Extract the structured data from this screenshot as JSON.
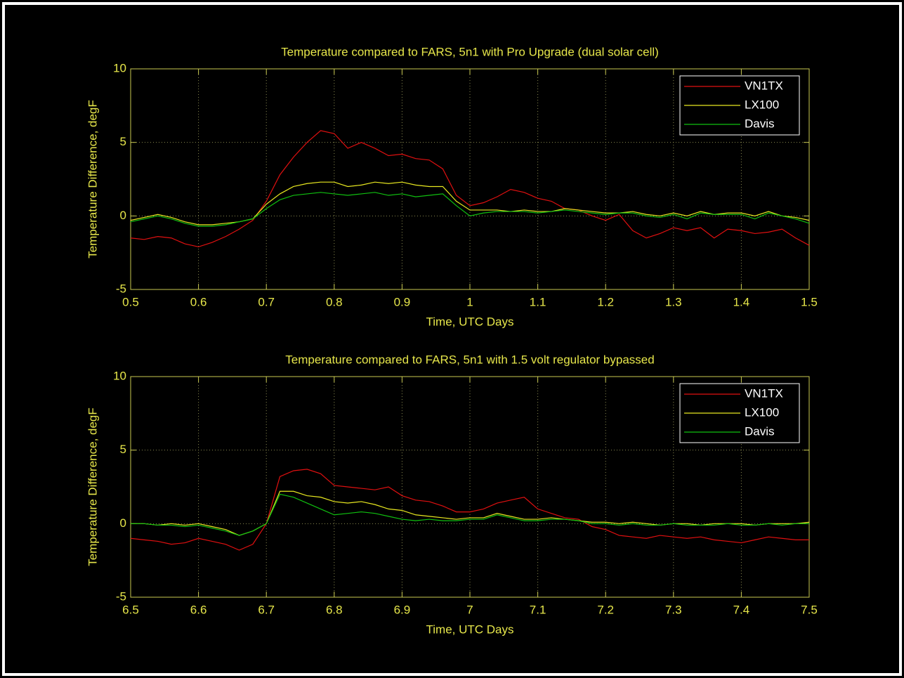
{
  "chart_data": [
    {
      "type": "line",
      "title": "Temperature compared to FARS, 5n1 with Pro Upgrade (dual solar cell)",
      "xlabel": "Time, UTC Days",
      "ylabel": "Temperature Difference, degF",
      "x": [
        0.5,
        0.52,
        0.54,
        0.56,
        0.58,
        0.6,
        0.62,
        0.64,
        0.66,
        0.68,
        0.7,
        0.72,
        0.74,
        0.76,
        0.78,
        0.8,
        0.82,
        0.84,
        0.86,
        0.88,
        0.9,
        0.92,
        0.94,
        0.96,
        0.98,
        1.0,
        1.02,
        1.04,
        1.06,
        1.08,
        1.1,
        1.12,
        1.14,
        1.16,
        1.18,
        1.2,
        1.22,
        1.24,
        1.26,
        1.28,
        1.3,
        1.32,
        1.34,
        1.36,
        1.38,
        1.4,
        1.42,
        1.44,
        1.46,
        1.48,
        1.5
      ],
      "series": [
        {
          "name": "VN1TX",
          "color": "#e01010",
          "values": [
            -1.5,
            -1.6,
            -1.4,
            -1.5,
            -1.9,
            -2.1,
            -1.8,
            -1.4,
            -0.9,
            -0.3,
            1.0,
            2.8,
            4.0,
            5.0,
            5.8,
            5.6,
            4.6,
            5.0,
            4.6,
            4.1,
            4.2,
            3.9,
            3.8,
            3.2,
            1.4,
            0.7,
            0.9,
            1.3,
            1.8,
            1.6,
            1.2,
            1.0,
            0.5,
            0.4,
            0.0,
            -0.3,
            0.1,
            -1.0,
            -1.5,
            -1.2,
            -0.8,
            -1.0,
            -0.8,
            -1.5,
            -0.9,
            -1.0,
            -1.2,
            -1.1,
            -0.9,
            -1.5,
            -2.0
          ]
        },
        {
          "name": "LX100",
          "color": "#e8e820",
          "values": [
            -0.3,
            -0.1,
            0.1,
            -0.1,
            -0.4,
            -0.6,
            -0.6,
            -0.5,
            -0.4,
            -0.2,
            0.8,
            1.5,
            2.0,
            2.2,
            2.3,
            2.3,
            2.0,
            2.1,
            2.3,
            2.2,
            2.3,
            2.1,
            2.0,
            2.0,
            1.0,
            0.4,
            0.4,
            0.4,
            0.3,
            0.4,
            0.3,
            0.3,
            0.5,
            0.4,
            0.3,
            0.2,
            0.2,
            0.3,
            0.1,
            0.0,
            0.2,
            0.0,
            0.3,
            0.1,
            0.2,
            0.2,
            0.0,
            0.3,
            0.0,
            -0.1,
            -0.3
          ]
        },
        {
          "name": "Davis",
          "color": "#10c010",
          "values": [
            -0.4,
            -0.2,
            0.0,
            -0.2,
            -0.5,
            -0.7,
            -0.7,
            -0.6,
            -0.4,
            -0.2,
            0.5,
            1.1,
            1.4,
            1.5,
            1.6,
            1.5,
            1.4,
            1.5,
            1.6,
            1.4,
            1.5,
            1.3,
            1.4,
            1.5,
            0.7,
            0.0,
            0.2,
            0.3,
            0.3,
            0.3,
            0.2,
            0.3,
            0.4,
            0.3,
            0.2,
            0.1,
            0.2,
            0.2,
            0.0,
            -0.1,
            0.1,
            -0.2,
            0.2,
            0.1,
            0.1,
            0.1,
            -0.2,
            0.2,
            0.0,
            -0.2,
            -0.5
          ]
        }
      ],
      "xlim": [
        0.5,
        1.5
      ],
      "xticks": [
        0.5,
        0.6,
        0.7,
        0.8,
        0.9,
        1,
        1.1,
        1.2,
        1.3,
        1.4,
        1.5
      ],
      "ylim": [
        -5,
        10
      ],
      "yticks": [
        -5,
        0,
        5,
        10
      ],
      "grid": true,
      "legend": "upper right"
    },
    {
      "type": "line",
      "title": "Temperature compared to FARS, 5n1 with 1.5 volt regulator bypassed",
      "xlabel": "Time, UTC Days",
      "ylabel": "Temperature Difference, degF",
      "x": [
        6.5,
        6.52,
        6.54,
        6.56,
        6.58,
        6.6,
        6.62,
        6.64,
        6.66,
        6.68,
        6.7,
        6.72,
        6.74,
        6.76,
        6.78,
        6.8,
        6.82,
        6.84,
        6.86,
        6.88,
        6.9,
        6.92,
        6.94,
        6.96,
        6.98,
        7.0,
        7.02,
        7.04,
        7.06,
        7.08,
        7.1,
        7.12,
        7.14,
        7.16,
        7.18,
        7.2,
        7.22,
        7.24,
        7.26,
        7.28,
        7.3,
        7.32,
        7.34,
        7.36,
        7.38,
        7.4,
        7.42,
        7.44,
        7.46,
        7.48,
        7.5
      ],
      "series": [
        {
          "name": "VN1TX",
          "color": "#e01010",
          "values": [
            -1.0,
            -1.1,
            -1.2,
            -1.4,
            -1.3,
            -1.0,
            -1.2,
            -1.4,
            -1.8,
            -1.4,
            0.0,
            3.2,
            3.6,
            3.7,
            3.4,
            2.6,
            2.5,
            2.4,
            2.3,
            2.5,
            1.9,
            1.6,
            1.5,
            1.2,
            0.8,
            0.8,
            1.0,
            1.4,
            1.6,
            1.8,
            1.0,
            0.7,
            0.4,
            0.3,
            -0.2,
            -0.4,
            -0.8,
            -0.9,
            -1.0,
            -0.8,
            -0.9,
            -1.0,
            -0.9,
            -1.1,
            -1.2,
            -1.3,
            -1.1,
            -0.9,
            -1.0,
            -1.1,
            -1.1
          ]
        },
        {
          "name": "LX100",
          "color": "#e8e820",
          "values": [
            0.0,
            0.0,
            -0.1,
            0.0,
            -0.1,
            0.0,
            -0.2,
            -0.4,
            -0.8,
            -0.5,
            0.0,
            2.2,
            2.2,
            1.9,
            1.8,
            1.5,
            1.4,
            1.5,
            1.3,
            1.0,
            0.9,
            0.6,
            0.5,
            0.4,
            0.3,
            0.4,
            0.4,
            0.7,
            0.5,
            0.3,
            0.3,
            0.4,
            0.3,
            0.2,
            0.1,
            0.1,
            0.0,
            0.1,
            0.0,
            -0.1,
            0.0,
            0.0,
            -0.1,
            0.0,
            0.0,
            0.0,
            -0.1,
            0.0,
            0.0,
            0.0,
            0.1
          ]
        },
        {
          "name": "Davis",
          "color": "#10c010",
          "values": [
            0.0,
            0.0,
            -0.1,
            -0.1,
            -0.2,
            -0.1,
            -0.3,
            -0.5,
            -0.8,
            -0.5,
            0.0,
            2.0,
            1.8,
            1.4,
            1.0,
            0.6,
            0.7,
            0.8,
            0.7,
            0.5,
            0.3,
            0.2,
            0.3,
            0.2,
            0.2,
            0.3,
            0.3,
            0.6,
            0.4,
            0.2,
            0.2,
            0.3,
            0.3,
            0.2,
            0.0,
            0.0,
            -0.1,
            0.0,
            -0.1,
            -0.1,
            0.0,
            -0.1,
            -0.1,
            -0.1,
            0.0,
            -0.1,
            -0.1,
            0.0,
            -0.1,
            0.0,
            0.0
          ]
        }
      ],
      "xlim": [
        6.5,
        7.5
      ],
      "xticks": [
        6.5,
        6.6,
        6.7,
        6.8,
        6.9,
        7,
        7.1,
        7.2,
        7.3,
        7.4,
        7.5
      ],
      "ylim": [
        -5,
        10
      ],
      "yticks": [
        -5,
        0,
        5,
        10
      ],
      "grid": true,
      "legend": "upper right"
    }
  ]
}
